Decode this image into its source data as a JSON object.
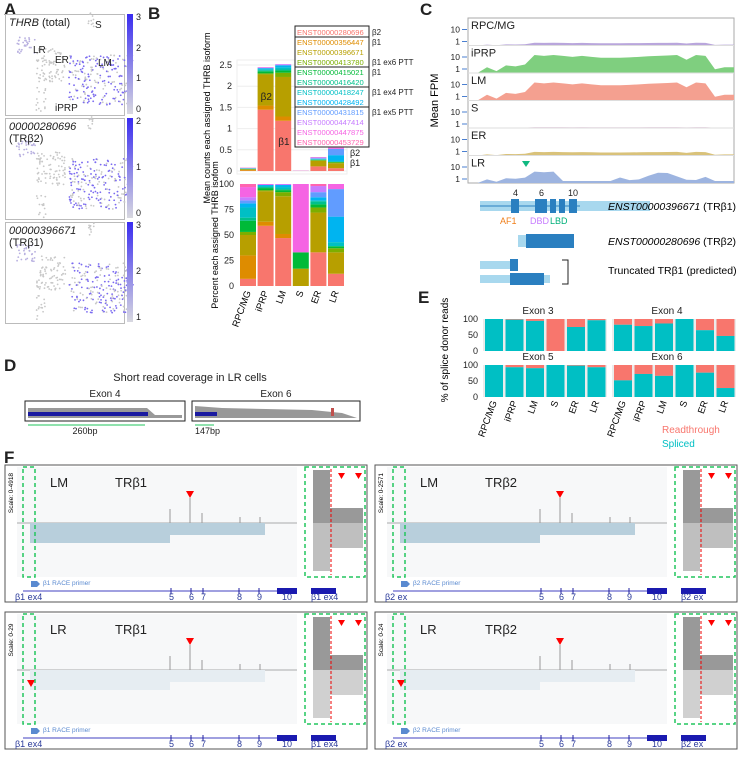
{
  "panel_labels": {
    "A": "A",
    "B": "B",
    "C": "C",
    "D": "D",
    "E": "E",
    "F": "F"
  },
  "colors": {
    "readthrough": "#f8766d",
    "spliced": "#00bfc4",
    "race_arrow": "#ff0000",
    "dashed": "#22c55e"
  },
  "panelA": {
    "plots": [
      {
        "title_italic": "THRB",
        "title_rest": " (total)",
        "scale_max": "3",
        "ticks": [
          "3",
          "2",
          "1",
          "0"
        ]
      },
      {
        "title_italic": "00000280696",
        "title_rest": "(TRβ2)",
        "ticks": [
          "2",
          "1",
          "0"
        ]
      },
      {
        "title_italic": "00000396671",
        "title_rest": "(TRβ1)",
        "ticks": [
          "3",
          "2",
          "1"
        ]
      }
    ],
    "cluster_labels": [
      "S",
      "LR",
      "ER",
      "LM",
      "iPRP"
    ]
  },
  "panelB": {
    "legend": [
      {
        "id": "ENST00000280696",
        "color": "#f8766d",
        "group": "β2"
      },
      {
        "id": "ENST00000356447",
        "color": "#de8c00",
        "group": "β1"
      },
      {
        "id": "ENST00000396671",
        "color": "#b79f00",
        "group": ""
      },
      {
        "id": "ENST00000413780",
        "color": "#7cae00",
        "group": "β1 ex6 PTT"
      },
      {
        "id": "ENST00000415021",
        "color": "#00ba38",
        "group": "β1"
      },
      {
        "id": "ENST00000416420",
        "color": "#00c08b",
        "group": ""
      },
      {
        "id": "ENST00000418247",
        "color": "#00bfc4",
        "group": "β1 ex4 PTT"
      },
      {
        "id": "ENST00000428492",
        "color": "#00b4f0",
        "group": ""
      },
      {
        "id": "ENST00000431815",
        "color": "#619cff",
        "group": "β1 ex5 PTT"
      },
      {
        "id": "ENST00000447414",
        "color": "#c77cff",
        "group": ""
      },
      {
        "id": "ENST00000447875",
        "color": "#f564e3",
        "group": ""
      },
      {
        "id": "ENST00000453729",
        "color": "#ff64b0",
        "group": ""
      }
    ],
    "bar_annotations": {
      "b2": "β2",
      "b1": "β1",
      "lr_b2": "β2",
      "lr_b1": "β1"
    }
  },
  "panelC": {
    "ylabel": "Mean FPM",
    "tracks": [
      {
        "name": "RPC/MG",
        "color": "#b9a6dc"
      },
      {
        "name": "iPRP",
        "color": "#7fcf7f"
      },
      {
        "name": "LM",
        "color": "#f4a090"
      },
      {
        "name": "S",
        "color": "#e8c8e0"
      },
      {
        "name": "ER",
        "color": "#d9c27a"
      },
      {
        "name": "LR",
        "color": "#9db4e0"
      }
    ],
    "ticks": [
      "10",
      "1"
    ],
    "exon_numbers": [
      "4",
      "6",
      "10"
    ],
    "domains": [
      {
        "name": "AF1",
        "color": "#f07f1a"
      },
      {
        "name": "DBD",
        "color": "#c77cff"
      },
      {
        "name": "LBD",
        "color": "#00b07a"
      }
    ],
    "transcripts": [
      {
        "italic": "ENST00000396671",
        "rest": " (TRβ1)"
      },
      {
        "italic": "ENST00000280696",
        "rest": " (TRβ2)"
      },
      {
        "italic": "",
        "rest": "Truncated TRβ1 (predicted)"
      }
    ]
  },
  "panelD": {
    "title": "Short read coverage in LR cells",
    "exons": [
      {
        "name": "Exon 4",
        "length": "260bp"
      },
      {
        "name": "Exon 6",
        "length": "147bp"
      }
    ]
  },
  "panelF": {
    "panels": [
      {
        "cell": "LM",
        "isoform": "TRβ1",
        "scale": "Scale: 0-4918",
        "primer": "β1 RACE primer",
        "start_label": "β1 ex4",
        "exons": [
          "5",
          "6",
          "7",
          "8",
          "9",
          "10"
        ],
        "inset_label": "β1 ex4"
      },
      {
        "cell": "LR",
        "isoform": "TRβ1",
        "scale": "Scale: 0-29",
        "primer": "β1 RACE primer",
        "start_label": "β1 ex4",
        "exons": [
          "5",
          "6",
          "7",
          "8",
          "9",
          "10"
        ],
        "inset_label": "β1 ex4"
      },
      {
        "cell": "LM",
        "isoform": "TRβ2",
        "scale": "Scale: 0-2571",
        "primer": "β2 RACE primer",
        "start_label": "β2 ex",
        "exons": [
          "5",
          "6",
          "7",
          "8",
          "9",
          "10"
        ],
        "inset_label": "β2 ex"
      },
      {
        "cell": "LR",
        "isoform": "TRβ2",
        "scale": "Scale: 0-24",
        "primer": "β2 RACE primer",
        "start_label": "β2 ex",
        "exons": [
          "5",
          "6",
          "7",
          "8",
          "9",
          "10"
        ],
        "inset_label": "β2 ex"
      }
    ]
  },
  "chart_data": [
    {
      "id": "B-top",
      "type": "bar",
      "stacked": true,
      "title": "",
      "ylabel": "Mean counts each assigned THRB isoform",
      "ylim": [
        0,
        2.5
      ],
      "yticks": [
        "0",
        "0.5",
        "1",
        "1.5",
        "2",
        "2.5"
      ],
      "categories": [
        "RPC/MG",
        "iPRP",
        "LM",
        "S",
        "ER",
        "LR"
      ],
      "totals": [
        0.08,
        2.45,
        2.52,
        0.01,
        0.33,
        0.55
      ]
    },
    {
      "id": "B-bottom",
      "type": "bar",
      "stacked": true,
      "ylabel": "Percent each assigned THRB isofom",
      "ylim": [
        0,
        100
      ],
      "yticks": [
        "0",
        "25",
        "50",
        "75",
        "100"
      ],
      "categories": [
        "RPC/MG",
        "iPRP",
        "LM",
        "S",
        "ER",
        "LR"
      ],
      "series": [
        {
          "name": "ENST00000280696",
          "values": [
            7,
            59,
            47,
            0,
            33,
            12
          ]
        },
        {
          "name": "ENST00000356447",
          "values": [
            23,
            4,
            4,
            0,
            0,
            0
          ]
        },
        {
          "name": "ENST00000396671",
          "values": [
            20,
            30,
            37,
            17,
            39,
            21
          ]
        },
        {
          "name": "ENST00000413780",
          "values": [
            3,
            1,
            4,
            0,
            5,
            4
          ]
        },
        {
          "name": "ENST00000415021",
          "values": [
            11,
            2,
            2,
            16,
            3,
            2
          ]
        },
        {
          "name": "ENST00000416420",
          "values": [
            3,
            1,
            1,
            0,
            3,
            0
          ]
        },
        {
          "name": "ENST00000418247",
          "values": [
            10,
            1,
            2,
            0,
            1,
            4
          ]
        },
        {
          "name": "ENST00000428492",
          "values": [
            4,
            1,
            2,
            0,
            3,
            25
          ]
        },
        {
          "name": "ENST00000431815",
          "values": [
            3,
            0,
            0,
            0,
            5,
            27
          ]
        },
        {
          "name": "ENST00000447414",
          "values": [
            3,
            0.5,
            1,
            0,
            6,
            0
          ]
        },
        {
          "name": "ENST00000447875",
          "values": [
            10,
            0.5,
            0,
            67,
            0,
            5
          ]
        },
        {
          "name": "ENST00000453729",
          "values": [
            3,
            0,
            0,
            0,
            2,
            0
          ]
        }
      ]
    },
    {
      "id": "E",
      "type": "bar",
      "stacked": true,
      "ylabel": "% of splice donor reads",
      "ylim": [
        0,
        100
      ],
      "yticks": [
        "0",
        "50",
        "100"
      ],
      "categories": [
        "RPC/MG",
        "iPRP",
        "LM",
        "S",
        "ER",
        "LR"
      ],
      "legend": [
        "Readthrough",
        "Spliced"
      ],
      "facets": [
        {
          "title": "Exon 3",
          "spliced": [
            100,
            98,
            94,
            0,
            75,
            96
          ]
        },
        {
          "title": "Exon 4",
          "spliced": [
            82,
            78,
            86,
            100,
            65,
            47
          ]
        },
        {
          "title": "Exon 5",
          "spliced": [
            100,
            93,
            90,
            100,
            98,
            93
          ]
        },
        {
          "title": "Exon 6",
          "spliced": [
            52,
            72,
            66,
            100,
            76,
            28
          ]
        }
      ]
    }
  ]
}
